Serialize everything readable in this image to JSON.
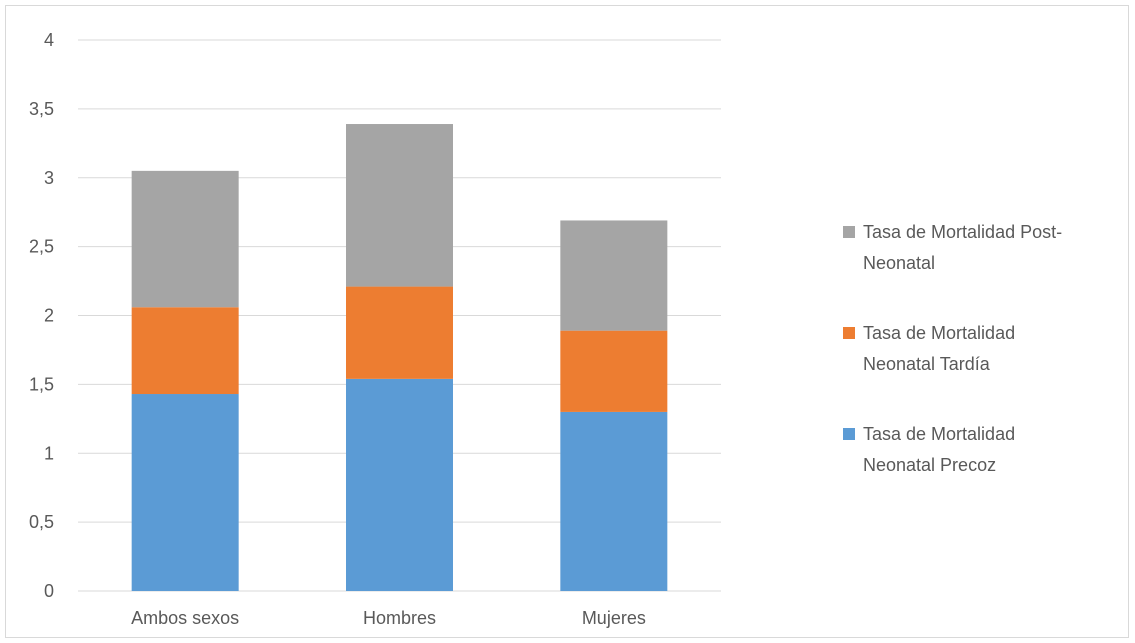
{
  "chart_data": {
    "type": "bar",
    "stacked": true,
    "categories": [
      "Ambos sexos",
      "Hombres",
      "Mujeres"
    ],
    "series": [
      {
        "name": "Tasa de Mortalidad Neonatal Precoz",
        "values": [
          1.43,
          1.54,
          1.3
        ],
        "color": "#5b9bd5"
      },
      {
        "name": "Tasa de Mortalidad Neonatal Tardía",
        "values": [
          0.63,
          0.67,
          0.59
        ],
        "color": "#ed7d31"
      },
      {
        "name": "Tasa de Mortalidad Post-Neonatal",
        "values": [
          0.99,
          1.18,
          0.8
        ],
        "color": "#a5a5a5"
      }
    ],
    "legend_lines": [
      [
        "Tasa de Mortalidad Post-",
        "Neonatal"
      ],
      [
        "Tasa de Mortalidad",
        "Neonatal Tardía"
      ],
      [
        "Tasa de Mortalidad",
        "Neonatal Precoz"
      ]
    ],
    "legend_order": [
      2,
      1,
      0
    ],
    "legend_position": "right",
    "ylim": [
      0,
      4
    ],
    "yticks": [
      "0",
      "0,5",
      "1",
      "1,5",
      "2",
      "2,5",
      "3",
      "3,5",
      "4"
    ],
    "ytick_values": [
      0,
      0.5,
      1,
      1.5,
      2,
      2.5,
      3,
      3.5,
      4
    ],
    "grid": true,
    "gridline_color": "#d9d9d9",
    "title": "",
    "xlabel": "",
    "ylabel": ""
  }
}
